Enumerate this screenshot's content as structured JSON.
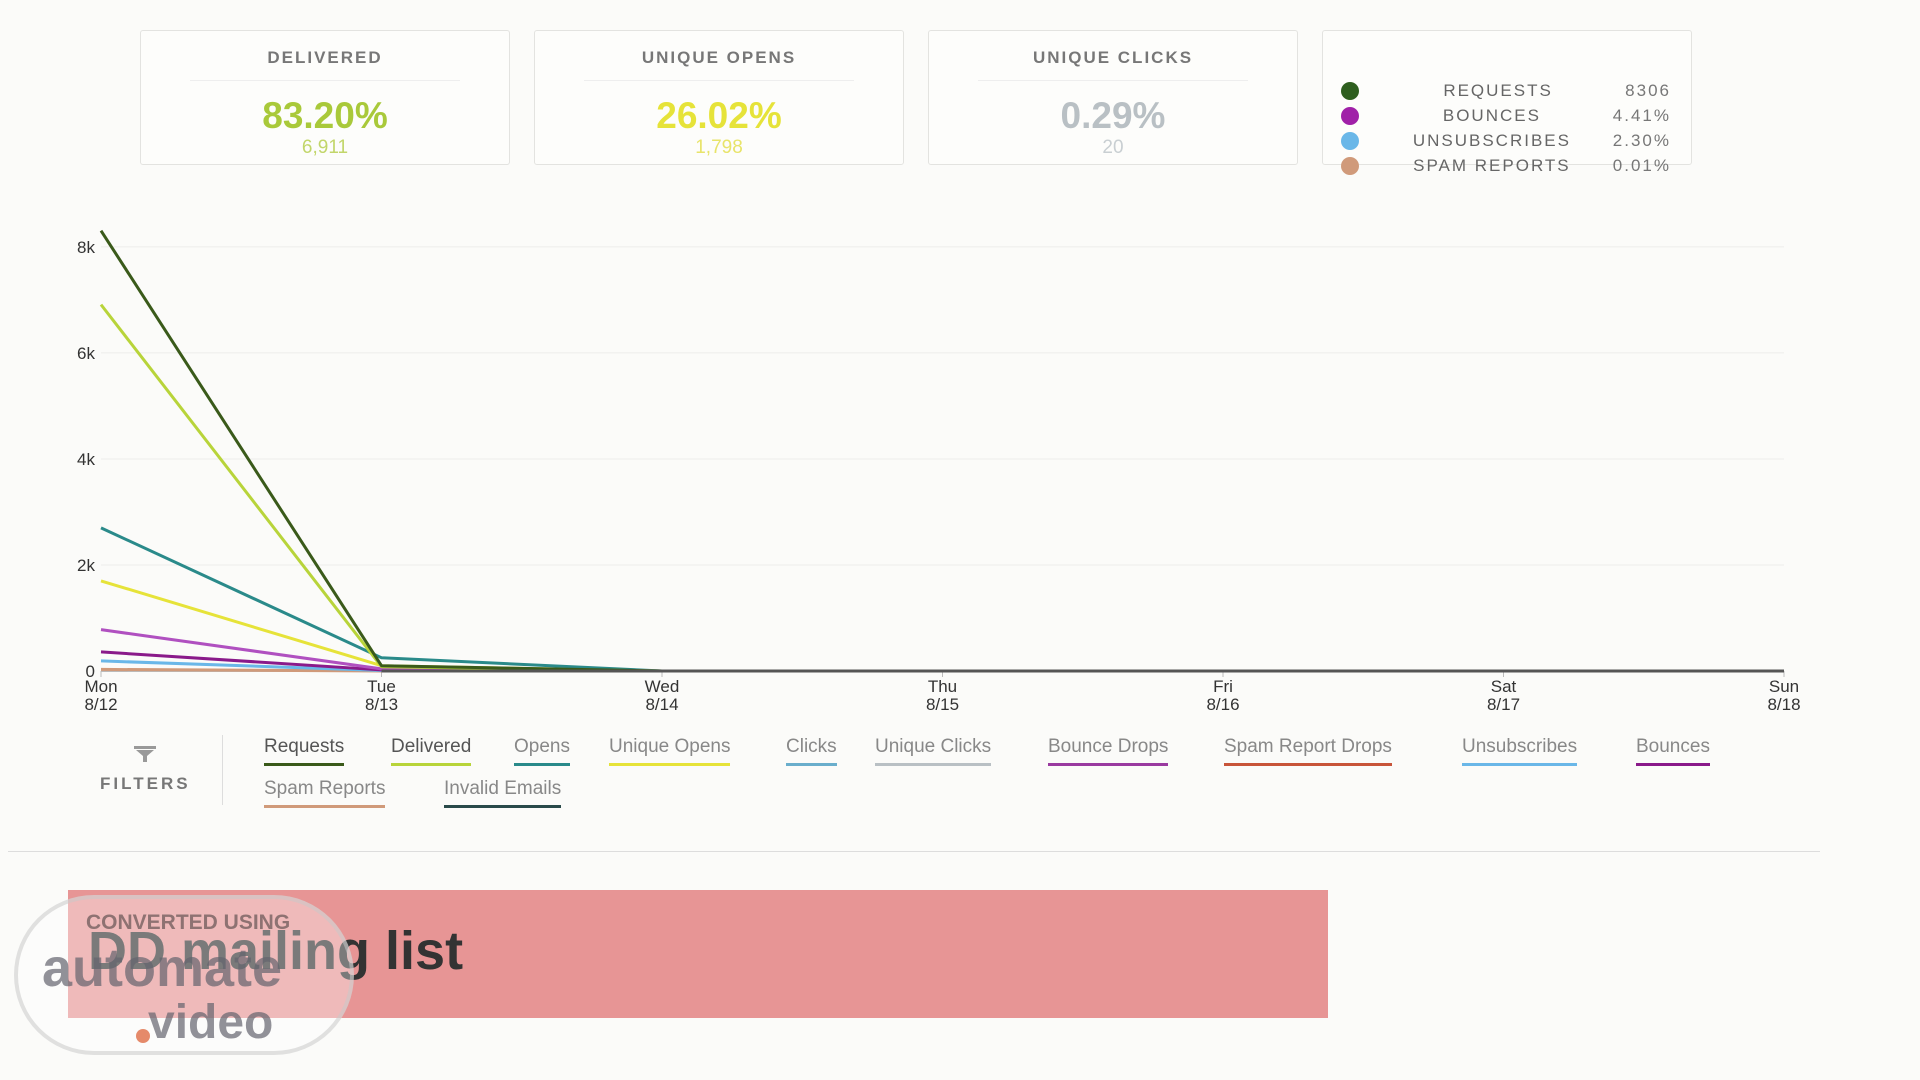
{
  "stats": {
    "delivered": {
      "label": "DELIVERED",
      "pct": "83.20%",
      "count": "6,911",
      "color": "#a9c93a"
    },
    "unique_opens": {
      "label": "UNIQUE OPENS",
      "pct": "26.02%",
      "count": "1,798",
      "color": "#e6e339"
    },
    "unique_clicks": {
      "label": "UNIQUE CLICKS",
      "pct": "0.29%",
      "count": "20",
      "color": "#b9c0c4"
    }
  },
  "summary": [
    {
      "label": "REQUESTS",
      "value": "8306",
      "color": "#2e5e1e"
    },
    {
      "label": "BOUNCES",
      "value": "4.41%",
      "color": "#a020a8"
    },
    {
      "label": "UNSUBSCRIBES",
      "value": "2.30%",
      "color": "#6ab7e8"
    },
    {
      "label": "SPAM REPORTS",
      "value": "0.01%",
      "color": "#d09a7a"
    }
  ],
  "chart_data": {
    "type": "line",
    "x": [
      "Mon 8/12",
      "Tue 8/13",
      "Wed 8/14",
      "Thu 8/15",
      "Fri 8/16",
      "Sat 8/17",
      "Sun 8/18"
    ],
    "x_day": [
      "Mon",
      "Tue",
      "Wed",
      "Thu",
      "Fri",
      "Sat",
      "Sun"
    ],
    "x_date": [
      "8/12",
      "8/13",
      "8/14",
      "8/15",
      "8/16",
      "8/17",
      "8/18"
    ],
    "y_ticks": [
      "0",
      "2k",
      "4k",
      "6k",
      "8k"
    ],
    "y_tick_values": [
      0,
      2000,
      4000,
      6000,
      8000
    ],
    "ylim": [
      0,
      8300
    ],
    "grid": true,
    "series": [
      {
        "name": "Requests",
        "color": "#3a5a1a",
        "values": [
          8306,
          100,
          0,
          0,
          0,
          0,
          0
        ]
      },
      {
        "name": "Delivered",
        "color": "#b8d43a",
        "values": [
          6911,
          80,
          0,
          0,
          0,
          0,
          0
        ]
      },
      {
        "name": "Opens",
        "color": "#2a8a8a",
        "values": [
          2700,
          250,
          0,
          0,
          0,
          0,
          0
        ]
      },
      {
        "name": "Unique Opens",
        "color": "#e6e339",
        "values": [
          1700,
          100,
          0,
          0,
          0,
          0,
          0
        ]
      },
      {
        "name": "Bounces",
        "color": "#b050c0",
        "values": [
          780,
          40,
          0,
          0,
          0,
          0,
          0
        ]
      },
      {
        "name": "Bounce Drops",
        "color": "#8a1a8a",
        "values": [
          360,
          20,
          0,
          0,
          0,
          0,
          0
        ]
      },
      {
        "name": "Unsubscribes",
        "color": "#6ab7e8",
        "values": [
          190,
          10,
          0,
          0,
          0,
          0,
          0
        ]
      },
      {
        "name": "Spam Reports",
        "color": "#d09a7a",
        "values": [
          30,
          0,
          0,
          0,
          0,
          0,
          0
        ]
      }
    ]
  },
  "filters": {
    "label": "FILTERS",
    "items": [
      {
        "label": "Requests",
        "color": "#3a5a1a"
      },
      {
        "label": "Delivered",
        "color": "#b8d43a"
      },
      {
        "label": "Opens",
        "color": "#2a8a8a"
      },
      {
        "label": "Unique Opens",
        "color": "#e6e339"
      },
      {
        "label": "Clicks",
        "color": "#6aaecc"
      },
      {
        "label": "Unique Clicks",
        "color": "#b9c0c4"
      },
      {
        "label": "Bounce Drops",
        "color": "#9a3aa0"
      },
      {
        "label": "Spam Report Drops",
        "color": "#c8553a"
      },
      {
        "label": "Unsubscribes",
        "color": "#6ab7e8"
      },
      {
        "label": "Bounces",
        "color": "#8a1a8a"
      },
      {
        "label": "Spam Reports",
        "color": "#d09a7a"
      },
      {
        "label": "Invalid Emails",
        "color": "#2a4a4a"
      }
    ]
  },
  "banner": {
    "title": "DD mailing list"
  },
  "watermark": {
    "top": "CONVERTED USING",
    "mid": "automate",
    "bot": "video"
  }
}
